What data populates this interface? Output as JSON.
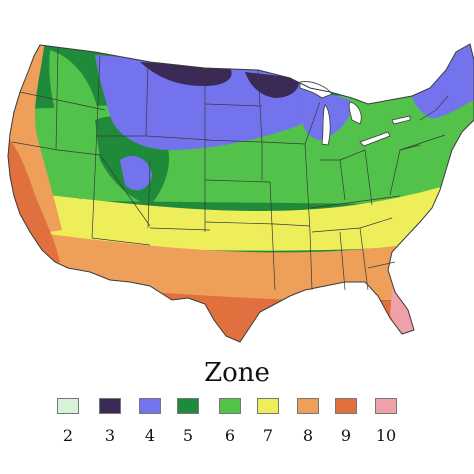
{
  "legend": {
    "title": "Zone",
    "zones": [
      {
        "label": "2",
        "color": "#d8f2d8"
      },
      {
        "label": "3",
        "color": "#3b2a55"
      },
      {
        "label": "4",
        "color": "#7373ee"
      },
      {
        "label": "5",
        "color": "#1f8a3a"
      },
      {
        "label": "6",
        "color": "#52c24a"
      },
      {
        "label": "7",
        "color": "#eeee5a"
      },
      {
        "label": "8",
        "color": "#eea05a"
      },
      {
        "label": "9",
        "color": "#e0703e"
      },
      {
        "label": "10",
        "color": "#f0a0a8"
      }
    ]
  },
  "map": {
    "region": "contiguous-united-states",
    "border_color": "#3a3a3a"
  }
}
